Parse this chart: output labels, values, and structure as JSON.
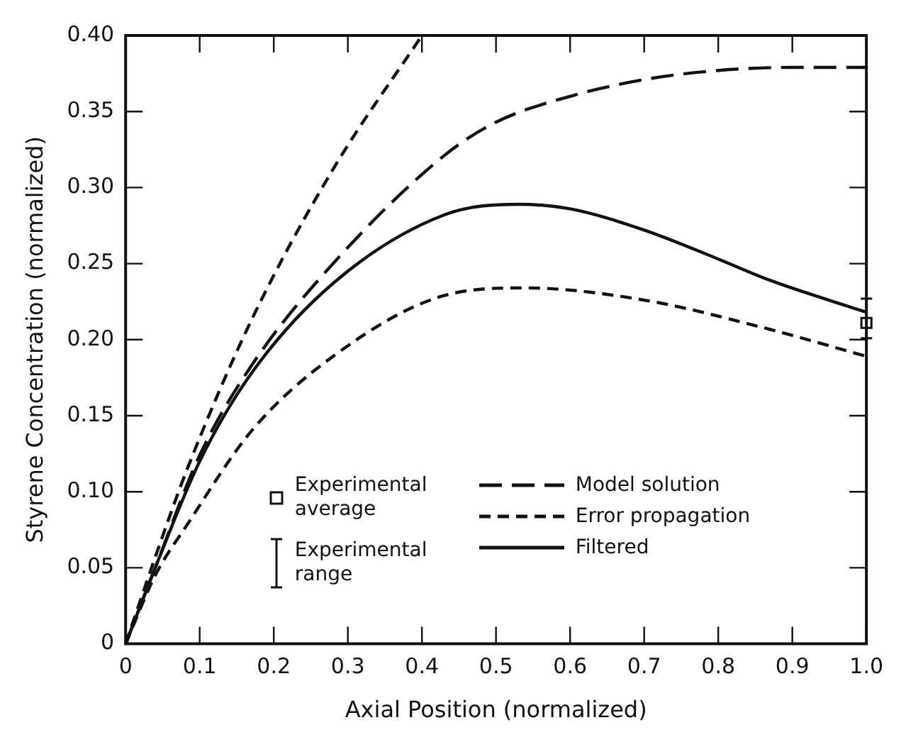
{
  "chart_data": {
    "type": "line",
    "xlabel": "Axial Position (normalized)",
    "ylabel": "Styrene Concentration (normalized)",
    "xlim": [
      0,
      1
    ],
    "ylim": [
      0,
      0.4
    ],
    "xticks": [
      0,
      0.1,
      0.2,
      0.3,
      0.4,
      0.5,
      0.6,
      0.7,
      0.8,
      0.9,
      {
        "value": 1,
        "label": "1.0"
      }
    ],
    "yticks": [
      0,
      {
        "value": 0.05,
        "label": "0.05"
      },
      {
        "value": 0.1,
        "label": "0.10"
      },
      {
        "value": 0.15,
        "label": "0.15"
      },
      {
        "value": 0.2,
        "label": "0.20"
      },
      {
        "value": 0.25,
        "label": "0.25"
      },
      {
        "value": 0.3,
        "label": "0.30"
      },
      {
        "value": 0.35,
        "label": "0.35"
      },
      {
        "value": 0.4,
        "label": "0.40"
      }
    ],
    "grid": false,
    "legend": "bottom right",
    "marker": "none",
    "annotations": [
      "Experimental range"
    ],
    "series": [
      {
        "name": "Model solution",
        "color": "#111111",
        "line_style": "dashed",
        "x": [
          0,
          0.04,
          0.1,
          0.17,
          0.28,
          0.43,
          0.5,
          0.6,
          0.7,
          0.8,
          0.9,
          1.0
        ],
        "values": [
          0,
          0.05,
          0.124,
          0.183,
          0.25,
          0.321,
          0.343,
          0.36,
          0.371,
          0.377,
          0.379,
          0.379
        ]
      },
      {
        "name": "Error propagation",
        "color": "#111111",
        "line_style": "dashed",
        "x": [
          0,
          0.04,
          0.084,
          0.17,
          0.28,
          0.43,
          0.54,
          0.7,
          0.86,
          1.0
        ],
        "values": [
          0,
          0.045,
          0.079,
          0.14,
          0.189,
          0.229,
          0.234,
          0.226,
          0.208,
          0.189
        ]
      },
      {
        "color": "#111111",
        "line_style": "dashed",
        "x": [
          0,
          0.04,
          0.084,
          0.17,
          0.28,
          0.4
        ],
        "values": [
          0,
          0.057,
          0.116,
          0.213,
          0.312,
          0.4
        ]
      },
      {
        "name": "Filtered",
        "color": "#111111",
        "line_style": "solid",
        "x": [
          0,
          0.04,
          0.1,
          0.17,
          0.28,
          0.43,
          0.53,
          0.6,
          0.7,
          0.8,
          0.87,
          1.0
        ],
        "values": [
          0,
          0.05,
          0.12,
          0.178,
          0.237,
          0.282,
          0.289,
          0.286,
          0.272,
          0.253,
          0.239,
          0.218
        ]
      },
      {
        "name": "Experimental average",
        "type": "scatter",
        "marker": "square",
        "color": "#111111",
        "x": [
          1.0
        ],
        "values": [
          0.211
        ],
        "errors": [
          [
            0.201,
            0.227
          ]
        ]
      }
    ]
  }
}
